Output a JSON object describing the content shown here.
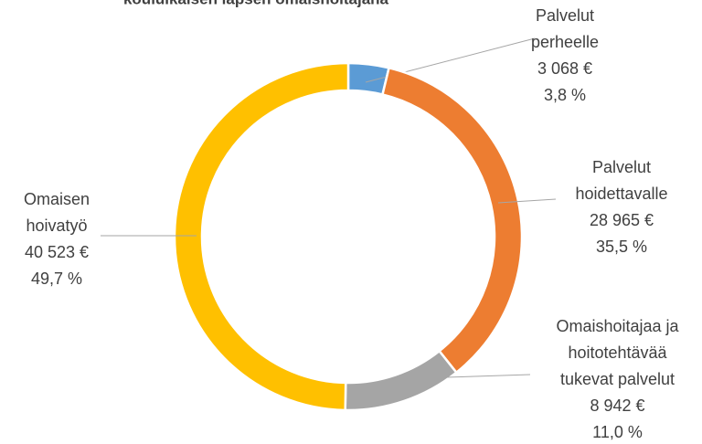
{
  "chart_data": {
    "type": "donut",
    "title": "kouluikäisen lapsen omaishoitajana",
    "categories": [
      "Palvelut perheelle",
      "Palvelut hoidettavalle",
      "Omaishoitajaa ja hoitotehtävää tukevat palvelut",
      "Omaisen hoivatyö"
    ],
    "values": [
      3068,
      28965,
      8942,
      40523
    ],
    "value_labels": [
      "3 068 €",
      "28 965 €",
      "8 942 €",
      "40 523 €"
    ],
    "percent_labels": [
      "3,8 %",
      "35,5 %",
      "11,0 %",
      "49,7 %"
    ],
    "colors": [
      "#5b9bd5",
      "#ed7d31",
      "#a5a5a5",
      "#ffc000"
    ]
  }
}
